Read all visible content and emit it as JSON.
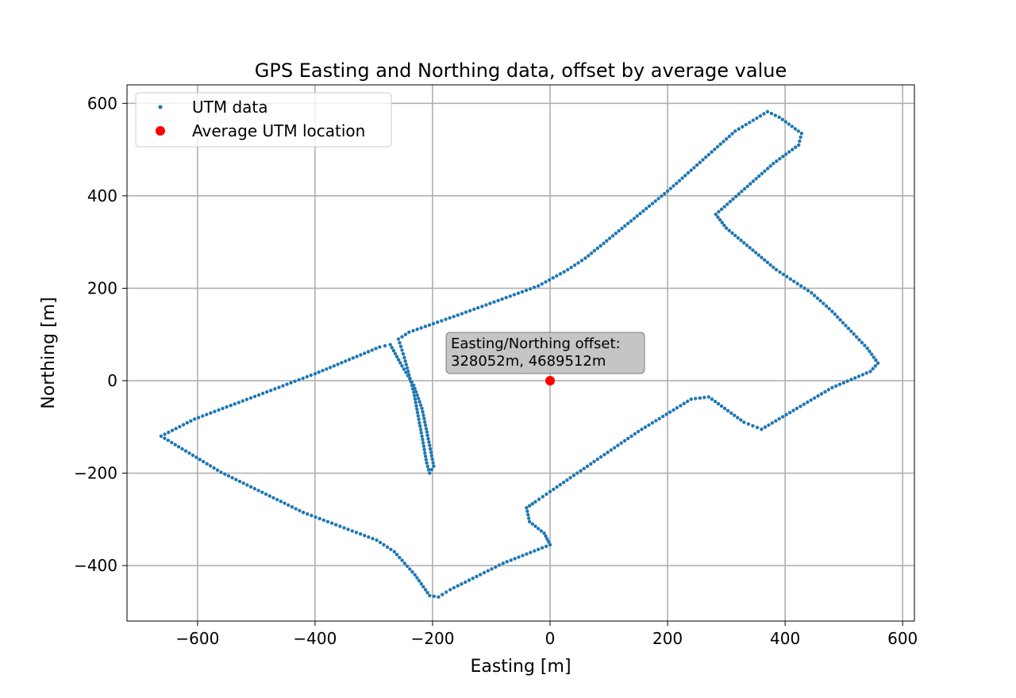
{
  "chart_data": {
    "type": "scatter",
    "title": "GPS Easting and Northing data, offset by average value",
    "xlabel": "Easting [m]",
    "ylabel": "Northing [m]",
    "xlim": [
      -720,
      620
    ],
    "ylim": [
      -520,
      640
    ],
    "xticks": [
      -600,
      -400,
      -200,
      0,
      200,
      400,
      600
    ],
    "xtick_labels": [
      "−600",
      "−400",
      "−200",
      "0",
      "200",
      "400",
      "600"
    ],
    "yticks": [
      -400,
      -200,
      0,
      200,
      400,
      600
    ],
    "ytick_labels": [
      "−400",
      "−200",
      "0",
      "200",
      "400",
      "600"
    ],
    "grid": true,
    "legend_position": "top-left",
    "series": [
      {
        "name": "UTM data",
        "color": "#1f77b4",
        "marker": "small-dot",
        "path_vertices": [
          [
            0,
            -240
          ],
          [
            -25,
            -262
          ],
          [
            -40,
            -275
          ],
          [
            -35,
            -305
          ],
          [
            -10,
            -330
          ],
          [
            0,
            -355
          ],
          [
            -80,
            -395
          ],
          [
            -170,
            -452
          ],
          [
            -190,
            -468
          ],
          [
            -205,
            -465
          ],
          [
            -230,
            -420
          ],
          [
            -265,
            -370
          ],
          [
            -295,
            -345
          ],
          [
            -420,
            -285
          ],
          [
            -560,
            -198
          ],
          [
            -662,
            -120
          ],
          [
            -605,
            -83
          ],
          [
            -400,
            15
          ],
          [
            -290,
            73
          ],
          [
            -272,
            78
          ],
          [
            -252,
            32
          ],
          [
            -232,
            -10
          ],
          [
            -218,
            -60
          ],
          [
            -205,
            -140
          ],
          [
            -198,
            -185
          ],
          [
            -205,
            -200
          ],
          [
            -210,
            -178
          ],
          [
            -218,
            -120
          ],
          [
            -232,
            -25
          ],
          [
            -248,
            50
          ],
          [
            -258,
            90
          ],
          [
            -240,
            105
          ],
          [
            -150,
            145
          ],
          [
            -20,
            205
          ],
          [
            30,
            240
          ],
          [
            60,
            265
          ],
          [
            200,
            410
          ],
          [
            315,
            540
          ],
          [
            370,
            582
          ],
          [
            390,
            570
          ],
          [
            428,
            535
          ],
          [
            423,
            510
          ],
          [
            380,
            470
          ],
          [
            282,
            360
          ],
          [
            300,
            330
          ],
          [
            385,
            240
          ],
          [
            445,
            190
          ],
          [
            480,
            150
          ],
          [
            540,
            70
          ],
          [
            558,
            38
          ],
          [
            545,
            20
          ],
          [
            480,
            -15
          ],
          [
            360,
            -105
          ],
          [
            330,
            -90
          ],
          [
            270,
            -35
          ],
          [
            240,
            -40
          ],
          [
            150,
            -110
          ],
          [
            0,
            -240
          ]
        ]
      },
      {
        "name": "Average UTM location",
        "color": "#ff0000",
        "marker": "large-dot",
        "points": [
          [
            0,
            0
          ]
        ]
      }
    ],
    "annotations": [
      {
        "lines": [
          "Easting/Northing offset:",
          "328052m, 4689512m"
        ],
        "x": 0,
        "y": 0
      }
    ]
  }
}
